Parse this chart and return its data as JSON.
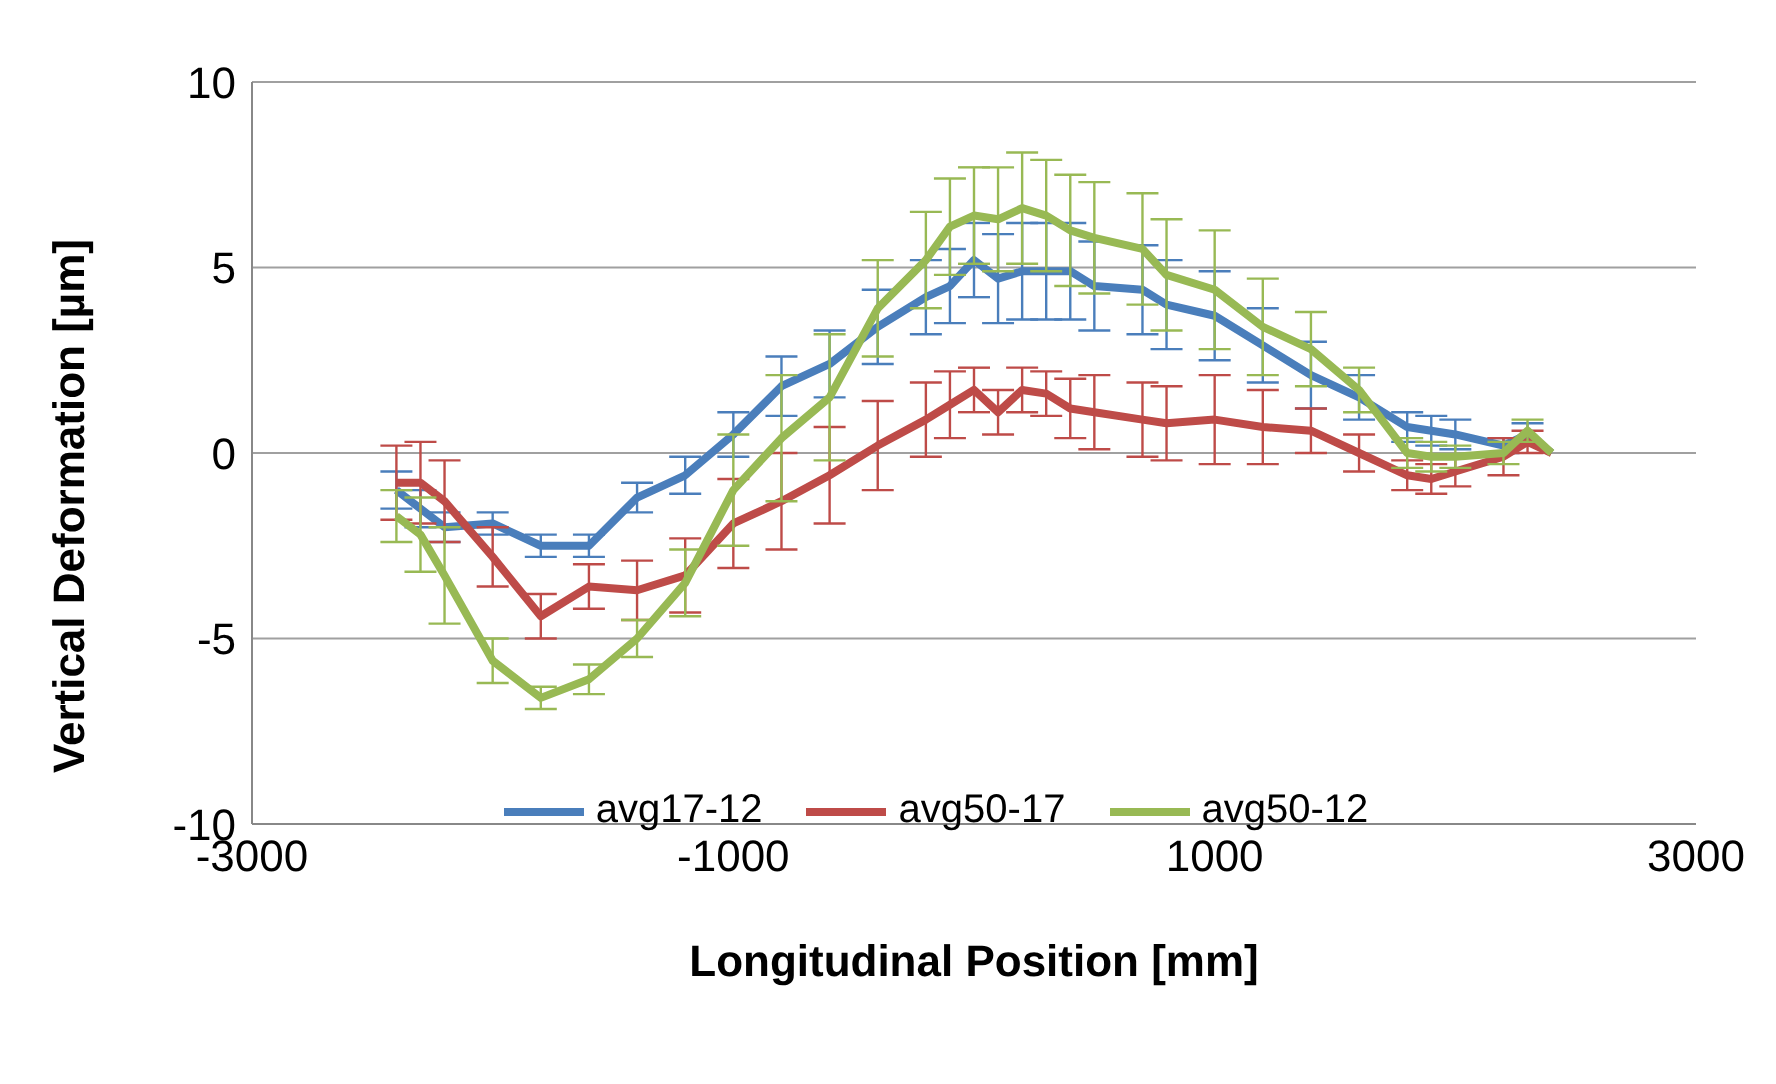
{
  "chart_data": {
    "type": "line",
    "xlabel": "Longitudinal Position  [mm]",
    "ylabel": "Vertical Deformation  [µm]",
    "x": [
      -2400,
      -2300,
      -2200,
      -2000,
      -1800,
      -1600,
      -1400,
      -1200,
      -1000,
      -800,
      -600,
      -400,
      -200,
      -100,
      0,
      100,
      200,
      300,
      400,
      500,
      700,
      800,
      1000,
      1200,
      1400,
      1600,
      1800,
      1900,
      2000,
      2200,
      2300,
      2400
    ],
    "series": [
      {
        "name": "avg17-12",
        "color": "#4a7ebb",
        "values": [
          -1.0,
          -1.5,
          -2.0,
          -1.9,
          -2.5,
          -2.5,
          -1.2,
          -0.6,
          0.5,
          1.8,
          2.4,
          3.4,
          4.2,
          4.5,
          5.2,
          4.7,
          4.9,
          4.9,
          4.9,
          4.5,
          4.4,
          4.0,
          3.7,
          2.9,
          2.1,
          1.5,
          0.7,
          0.6,
          0.5,
          0.2,
          0.5,
          0.0
        ],
        "errors": [
          0.5,
          0.5,
          0.4,
          0.3,
          0.3,
          0.3,
          0.4,
          0.5,
          0.6,
          0.8,
          0.9,
          1.0,
          1.0,
          1.0,
          1.0,
          1.2,
          1.3,
          1.3,
          1.3,
          1.2,
          1.2,
          1.2,
          1.2,
          1.0,
          0.9,
          0.6,
          0.4,
          0.4,
          0.4,
          0.2,
          0.3,
          null
        ]
      },
      {
        "name": "avg50-17",
        "color": "#be4b48",
        "values": [
          -0.8,
          -0.8,
          -1.3,
          -2.8,
          -4.4,
          -3.6,
          -3.7,
          -3.3,
          -1.9,
          -1.3,
          -0.6,
          0.2,
          0.9,
          1.3,
          1.7,
          1.1,
          1.7,
          1.6,
          1.2,
          1.1,
          0.9,
          0.8,
          0.9,
          0.7,
          0.6,
          0.0,
          -0.6,
          -0.7,
          -0.5,
          -0.1,
          0.3,
          0.0
        ],
        "errors": [
          1.0,
          1.1,
          1.1,
          0.8,
          0.6,
          0.6,
          0.8,
          1.0,
          1.2,
          1.3,
          1.3,
          1.2,
          1.0,
          0.9,
          0.6,
          0.6,
          0.6,
          0.6,
          0.8,
          1.0,
          1.0,
          1.0,
          1.2,
          1.0,
          0.6,
          0.5,
          0.4,
          0.4,
          0.4,
          0.5,
          0.3,
          null
        ]
      },
      {
        "name": "avg50-12",
        "color": "#98b954",
        "values": [
          -1.7,
          -2.2,
          -3.3,
          -5.6,
          -6.6,
          -6.1,
          -5.0,
          -3.5,
          -1.0,
          0.4,
          1.5,
          3.9,
          5.2,
          6.1,
          6.4,
          6.3,
          6.6,
          6.4,
          6.0,
          5.8,
          5.5,
          4.8,
          4.4,
          3.4,
          2.8,
          1.7,
          0.0,
          -0.1,
          -0.1,
          0.0,
          0.6,
          0.0
        ],
        "errors": [
          0.7,
          1.0,
          1.3,
          0.6,
          0.3,
          0.4,
          0.5,
          0.9,
          1.5,
          1.7,
          1.7,
          1.3,
          1.3,
          1.3,
          1.3,
          1.4,
          1.5,
          1.5,
          1.5,
          1.5,
          1.5,
          1.5,
          1.6,
          1.3,
          1.0,
          0.6,
          0.4,
          0.4,
          0.3,
          0.3,
          0.3,
          null
        ]
      }
    ],
    "xlim": [
      -3000,
      3000
    ],
    "xticks": [
      -3000,
      -1000,
      1000,
      3000
    ],
    "ylim": [
      -10,
      10
    ],
    "yticks": [
      -10,
      -5,
      0,
      5,
      10
    ],
    "grid": "y",
    "legend": "bottom",
    "marker": "none",
    "line_style": "solid"
  }
}
